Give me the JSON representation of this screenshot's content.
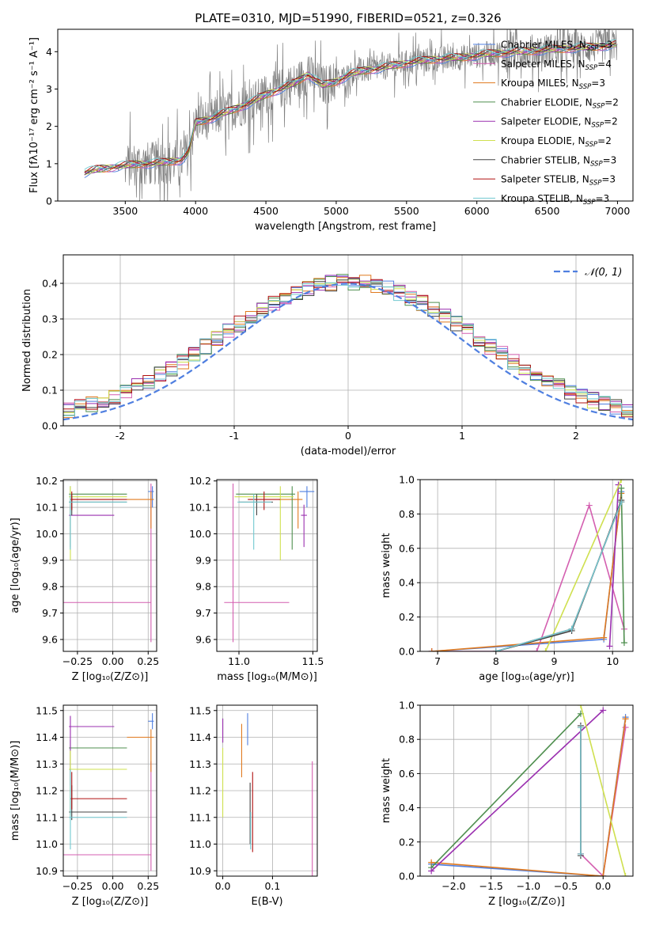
{
  "title": "PLATE=0310, MJD=51990, FIBERID=0521, z=0.326",
  "colors": {
    "chabrier_miles": "#4f7fe0",
    "salpeter_miles": "#d45fb0",
    "kroupa_miles": "#e07a1f",
    "chabrier_elodie": "#4f8f4f",
    "salpeter_elodie": "#9b30b0",
    "kroupa_elodie": "#cfe04f",
    "chabrier_stelib": "#444444",
    "salpeter_stelib": "#b01010",
    "kroupa_stelib": "#70c8d0",
    "data": "#808080"
  },
  "legend": [
    {
      "base": "Chabrier MILES, N",
      "sub": "SSP",
      "tail": "=3",
      "key": "chabrier_miles"
    },
    {
      "base": "Salpeter MILES, N",
      "sub": "SSP",
      "tail": "=4",
      "key": "salpeter_miles"
    },
    {
      "base": "Kroupa MILES, N",
      "sub": "SSP",
      "tail": "=3",
      "key": "kroupa_miles"
    },
    {
      "base": "Chabrier ELODIE, N",
      "sub": "SSP",
      "tail": "=2",
      "key": "chabrier_elodie"
    },
    {
      "base": "Salpeter ELODIE, N",
      "sub": "SSP",
      "tail": "=2",
      "key": "salpeter_elodie"
    },
    {
      "base": "Kroupa ELODIE, N",
      "sub": "SSP",
      "tail": "=2",
      "key": "kroupa_elodie"
    },
    {
      "base": "Chabrier STELIB, N",
      "sub": "SSP",
      "tail": "=3",
      "key": "chabrier_stelib"
    },
    {
      "base": "Salpeter STELIB, N",
      "sub": "SSP",
      "tail": "=3",
      "key": "salpeter_stelib"
    },
    {
      "base": "Kroupa STELIB, N",
      "sub": "SSP",
      "tail": "=3",
      "key": "kroupa_stelib"
    }
  ],
  "chart_data": [
    {
      "type": "line",
      "panel": "spectrum",
      "xlabel": "wavelength [Angstrom, rest frame]",
      "ylabel": "Flux [fλ10⁻¹⁷ erg cm⁻² s⁻¹ A⁻¹]",
      "xlim": [
        3020,
        7110
      ],
      "ylim": [
        0,
        4.6
      ],
      "xticks": [
        3500,
        4000,
        4500,
        5000,
        5500,
        6000,
        6500,
        7000
      ],
      "yticks": [
        0,
        1,
        2,
        3,
        4
      ],
      "model_continuum": {
        "x": [
          3210,
          3300,
          3400,
          3500,
          3600,
          3700,
          3800,
          3900,
          3950,
          4000,
          4100,
          4200,
          4300,
          4400,
          4500,
          4600,
          4700,
          4800,
          4900,
          5000,
          5100,
          5200,
          5300,
          5500,
          5700,
          5900,
          6100,
          6300,
          6500,
          6700,
          6900,
          7000
        ],
        "y": [
          0.75,
          0.85,
          0.9,
          0.95,
          1.0,
          1.0,
          1.05,
          1.1,
          1.3,
          2.1,
          2.2,
          2.35,
          2.5,
          2.65,
          2.85,
          3.0,
          3.15,
          3.4,
          3.1,
          3.2,
          3.4,
          3.5,
          3.55,
          3.7,
          3.8,
          3.85,
          3.95,
          4.0,
          4.05,
          4.1,
          4.15,
          4.2
        ]
      },
      "data_range": [
        3210,
        7000
      ]
    },
    {
      "type": "histogram",
      "panel": "residuals",
      "xlabel": "(data-model)/error",
      "ylabel": "Normed distribution",
      "xlim": [
        -2.5,
        2.5
      ],
      "ylim": [
        0,
        0.48
      ],
      "xticks": [
        -2,
        -1,
        0,
        1,
        2
      ],
      "yticks": [
        0.0,
        0.1,
        0.2,
        0.3,
        0.4
      ],
      "gaussian_label": "𝒩(0, 1)",
      "bin_width": 0.1
    },
    {
      "type": "errorbar",
      "panel": "age-vs-Z",
      "xlabel": "Z [log₁₀(Z/Z⊙)]",
      "ylabel": "age  [log₁₀(age/yr)]",
      "xlim": [
        -0.35,
        0.31
      ],
      "ylim": [
        9.555,
        10.205
      ],
      "xticks": [
        -0.25,
        0.0,
        0.25
      ],
      "xticklabels": [
        "−0.25",
        "0.00",
        "0.25"
      ],
      "yticks": [
        9.6,
        9.7,
        9.8,
        9.9,
        10.0,
        10.1,
        10.2
      ],
      "points": [
        {
          "key": "chabrier_miles",
          "x": 0.28,
          "y": 10.16,
          "xerr": [
            0.03,
            0.01
          ],
          "yerr": [
            0.06,
            0.02
          ]
        },
        {
          "key": "salpeter_miles",
          "x": 0.27,
          "y": 9.74,
          "xerr": [
            0.62,
            0.0
          ],
          "yerr": [
            0.15,
            0.45
          ]
        },
        {
          "key": "kroupa_miles",
          "x": 0.27,
          "y": 10.13,
          "xerr": [
            0.17,
            0.02
          ],
          "yerr": [
            0.11,
            0.03
          ]
        },
        {
          "key": "chabrier_elodie",
          "x": -0.3,
          "y": 10.15,
          "xerr": [
            0.01,
            0.4
          ],
          "yerr": [
            0.21,
            0.03
          ]
        },
        {
          "key": "salpeter_elodie",
          "x": -0.3,
          "y": 10.07,
          "xerr": [
            0.01,
            0.31
          ],
          "yerr": [
            0.12,
            0.04
          ]
        },
        {
          "key": "kroupa_elodie",
          "x": -0.3,
          "y": 10.14,
          "xerr": [
            0.01,
            0.4
          ],
          "yerr": [
            0.24,
            0.04
          ]
        },
        {
          "key": "chabrier_stelib",
          "x": -0.29,
          "y": 10.12,
          "xerr": [
            0.02,
            0.39
          ],
          "yerr": [
            0.05,
            0.03
          ]
        },
        {
          "key": "salpeter_stelib",
          "x": -0.29,
          "y": 10.13,
          "xerr": [
            0.01,
            0.39
          ],
          "yerr": [
            0.04,
            0.03
          ]
        },
        {
          "key": "kroupa_stelib",
          "x": -0.3,
          "y": 10.12,
          "xerr": [
            0.01,
            0.4
          ],
          "yerr": [
            0.18,
            0.03
          ]
        }
      ]
    },
    {
      "type": "errorbar",
      "panel": "age-vs-mass",
      "xlabel": "mass [log₁₀(M/M⊙)]",
      "ylabel": "",
      "xlim": [
        10.85,
        11.53
      ],
      "ylim": [
        9.555,
        10.205
      ],
      "xticks": [
        11.0,
        11.5
      ],
      "xticklabels": [
        "11.0",
        "11.5"
      ],
      "yticks": [
        9.6,
        9.7,
        9.8,
        9.9,
        10.0,
        10.1,
        10.2
      ],
      "points": [
        {
          "key": "chabrier_miles",
          "x": 11.46,
          "y": 10.16,
          "xerr": [
            0.05,
            0.05
          ],
          "yerr": [
            0.06,
            0.02
          ]
        },
        {
          "key": "salpeter_miles",
          "x": 10.96,
          "y": 9.74,
          "xerr": [
            0.06,
            0.38
          ],
          "yerr": [
            0.15,
            0.45
          ]
        },
        {
          "key": "kroupa_miles",
          "x": 11.4,
          "y": 10.13,
          "xerr": [
            0.13,
            0.03
          ],
          "yerr": [
            0.11,
            0.03
          ]
        },
        {
          "key": "chabrier_elodie",
          "x": 11.36,
          "y": 10.15,
          "xerr": [
            0.38,
            0.02
          ],
          "yerr": [
            0.21,
            0.03
          ]
        },
        {
          "key": "salpeter_elodie",
          "x": 11.44,
          "y": 10.07,
          "xerr": [
            0.02,
            0.02
          ],
          "yerr": [
            0.12,
            0.04
          ]
        },
        {
          "key": "kroupa_elodie",
          "x": 11.28,
          "y": 10.14,
          "xerr": [
            0.31,
            0.09
          ],
          "yerr": [
            0.24,
            0.04
          ]
        },
        {
          "key": "chabrier_stelib",
          "x": 11.12,
          "y": 10.12,
          "xerr": [
            0.12,
            0.11
          ],
          "yerr": [
            0.05,
            0.03
          ]
        },
        {
          "key": "salpeter_stelib",
          "x": 11.17,
          "y": 10.13,
          "xerr": [
            0.11,
            0.11
          ],
          "yerr": [
            0.04,
            0.03
          ]
        },
        {
          "key": "kroupa_stelib",
          "x": 11.1,
          "y": 10.12,
          "xerr": [
            0.11,
            0.12
          ],
          "yerr": [
            0.18,
            0.03
          ]
        }
      ]
    },
    {
      "type": "line",
      "panel": "weight-vs-age",
      "xlabel": "age  [log₁₀(age/yr)]",
      "ylabel": "mass weight",
      "xlim": [
        6.7,
        10.35
      ],
      "ylim": [
        0,
        1.0
      ],
      "xticks": [
        7,
        8,
        9,
        10
      ],
      "yticks": [
        0.0,
        0.2,
        0.4,
        0.6,
        0.8,
        1.0
      ],
      "series": [
        {
          "key": "chabrier_miles",
          "x": [
            6.9,
            9.85,
            10.15
          ],
          "y": [
            0.0,
            0.07,
            0.93
          ]
        },
        {
          "key": "salpeter_miles",
          "x": [
            6.9,
            8.7,
            9.6,
            10.2
          ],
          "y": [
            0.0,
            0.0,
            0.85,
            0.13
          ]
        },
        {
          "key": "kroupa_miles",
          "x": [
            6.9,
            9.85,
            10.15
          ],
          "y": [
            0.0,
            0.08,
            0.92
          ]
        },
        {
          "key": "chabrier_elodie",
          "x": [
            10.15,
            10.2
          ],
          "y": [
            0.95,
            0.05
          ]
        },
        {
          "key": "salpeter_elodie",
          "x": [
            9.95,
            10.1
          ],
          "y": [
            0.03,
            0.97
          ]
        },
        {
          "key": "kroupa_elodie",
          "x": [
            8.85,
            10.15
          ],
          "y": [
            0.0,
            1.0
          ]
        },
        {
          "key": "chabrier_stelib",
          "x": [
            8.0,
            9.3,
            10.15
          ],
          "y": [
            0.0,
            0.12,
            0.88
          ]
        },
        {
          "key": "salpeter_stelib",
          "x": [
            8.0,
            9.3,
            10.15
          ],
          "y": [
            0.0,
            0.13,
            0.87
          ]
        },
        {
          "key": "kroupa_stelib",
          "x": [
            8.0,
            9.3,
            10.15
          ],
          "y": [
            0.0,
            0.13,
            0.87
          ]
        }
      ]
    },
    {
      "type": "errorbar",
      "panel": "mass-vs-Z",
      "xlabel": "Z [log₁₀(Z/Z⊙)]",
      "ylabel": "mass [log₁₀(M/M⊙)]",
      "xlim": [
        -0.35,
        0.31
      ],
      "ylim": [
        10.88,
        11.52
      ],
      "xticks": [
        -0.25,
        0.0,
        0.25
      ],
      "xticklabels": [
        "−0.25",
        "0.00",
        "0.25"
      ],
      "yticks": [
        10.9,
        11.0,
        11.1,
        11.2,
        11.3,
        11.4,
        11.5
      ],
      "points": [
        {
          "key": "chabrier_miles",
          "x": 0.28,
          "y": 11.46,
          "xerr": [
            0.03,
            0.01
          ],
          "yerr": [
            0.03,
            0.03
          ]
        },
        {
          "key": "salpeter_miles",
          "x": 0.27,
          "y": 10.96,
          "xerr": [
            0.62,
            0.0
          ],
          "yerr": [
            0.06,
            0.35
          ]
        },
        {
          "key": "kroupa_miles",
          "x": 0.27,
          "y": 11.4,
          "xerr": [
            0.17,
            0.02
          ],
          "yerr": [
            0.13,
            0.03
          ]
        },
        {
          "key": "chabrier_elodie",
          "x": -0.3,
          "y": 11.36,
          "xerr": [
            0.01,
            0.4
          ],
          "yerr": [
            0.25,
            0.03
          ]
        },
        {
          "key": "salpeter_elodie",
          "x": -0.3,
          "y": 11.44,
          "xerr": [
            0.01,
            0.31
          ],
          "yerr": [
            0.22,
            0.04
          ]
        },
        {
          "key": "kroupa_elodie",
          "x": -0.3,
          "y": 11.28,
          "xerr": [
            0.01,
            0.4
          ],
          "yerr": [
            0.18,
            0.07
          ]
        },
        {
          "key": "chabrier_stelib",
          "x": -0.29,
          "y": 11.12,
          "xerr": [
            0.02,
            0.39
          ],
          "yerr": [
            0.03,
            0.1
          ]
        },
        {
          "key": "salpeter_stelib",
          "x": -0.29,
          "y": 11.17,
          "xerr": [
            0.01,
            0.39
          ],
          "yerr": [
            0.04,
            0.1
          ]
        },
        {
          "key": "kroupa_stelib",
          "x": -0.3,
          "y": 11.1,
          "xerr": [
            0.01,
            0.4
          ],
          "yerr": [
            0.12,
            0.18
          ]
        }
      ]
    },
    {
      "type": "errorbar",
      "panel": "mass-vs-EBV",
      "xlabel": "E(B-V)",
      "ylabel": "",
      "xlim": [
        -0.012,
        0.19
      ],
      "ylim": [
        10.88,
        11.52
      ],
      "xticks": [
        0.0,
        0.1
      ],
      "xticklabels": [
        "0.0",
        "0.1"
      ],
      "yticks": [
        10.9,
        11.0,
        11.1,
        11.2,
        11.3,
        11.4,
        11.5
      ],
      "points": [
        {
          "key": "chabrier_miles",
          "x": 0.05,
          "y": 11.43,
          "yerr": [
            0.06,
            0.06
          ]
        },
        {
          "key": "salpeter_miles",
          "x": 0.18,
          "y": 11.1,
          "yerr": [
            0.23,
            0.21
          ]
        },
        {
          "key": "kroupa_miles",
          "x": 0.038,
          "y": 11.35,
          "yerr": [
            0.1,
            0.1
          ]
        },
        {
          "key": "chabrier_elodie",
          "x": 0.0,
          "y": 11.42,
          "yerr": [
            0.04,
            0.05
          ]
        },
        {
          "key": "salpeter_elodie",
          "x": 0.0,
          "y": 11.42,
          "yerr": [
            0.04,
            0.05
          ]
        },
        {
          "key": "kroupa_elodie",
          "x": 0.0,
          "y": 11.23,
          "yerr": [
            0.13,
            0.13
          ]
        },
        {
          "key": "chabrier_stelib",
          "x": 0.055,
          "y": 11.15,
          "yerr": [
            0.15,
            0.08
          ]
        },
        {
          "key": "salpeter_stelib",
          "x": 0.06,
          "y": 11.11,
          "yerr": [
            0.14,
            0.16
          ]
        },
        {
          "key": "kroupa_stelib",
          "x": 0.056,
          "y": 11.05,
          "yerr": [
            0.07,
            0.07
          ]
        }
      ]
    },
    {
      "type": "line",
      "panel": "weight-vs-Z",
      "xlabel": "Z [log₁₀(Z/Z⊙)]",
      "ylabel": "mass weight",
      "xlim": [
        -2.45,
        0.4
      ],
      "ylim": [
        0,
        1.0
      ],
      "xticks": [
        -2.0,
        -1.5,
        -1.0,
        -0.5,
        0.0
      ],
      "xticklabels": [
        "−2.0",
        "−1.5",
        "−1.0",
        "−0.5",
        "0.0"
      ],
      "yticks": [
        0.0,
        0.2,
        0.4,
        0.6,
        0.8,
        1.0
      ],
      "series": [
        {
          "key": "chabrier_miles",
          "x": [
            -2.3,
            0.0,
            0.3
          ],
          "y": [
            0.07,
            0.0,
            0.93
          ]
        },
        {
          "key": "salpeter_miles",
          "x": [
            -0.3,
            0.0,
            0.3
          ],
          "y": [
            0.13,
            0.0,
            0.87
          ]
        },
        {
          "key": "kroupa_miles",
          "x": [
            -2.3,
            0.0,
            0.3
          ],
          "y": [
            0.08,
            0.0,
            0.92
          ]
        },
        {
          "key": "chabrier_elodie",
          "x": [
            -2.3,
            -0.3
          ],
          "y": [
            0.05,
            0.95
          ]
        },
        {
          "key": "salpeter_elodie",
          "x": [
            -2.3,
            0.0
          ],
          "y": [
            0.03,
            0.97
          ]
        },
        {
          "key": "kroupa_elodie",
          "x": [
            -0.3,
            0.3
          ],
          "y": [
            1.0,
            0.0
          ]
        },
        {
          "key": "chabrier_stelib",
          "x": [
            -0.3,
            -0.3
          ],
          "y": [
            0.12,
            0.88
          ]
        },
        {
          "key": "salpeter_stelib",
          "x": [
            -0.3,
            -0.3
          ],
          "y": [
            0.13,
            0.87
          ]
        },
        {
          "key": "kroupa_stelib",
          "x": [
            -0.3,
            -0.3
          ],
          "y": [
            0.13,
            0.87
          ]
        }
      ]
    }
  ]
}
